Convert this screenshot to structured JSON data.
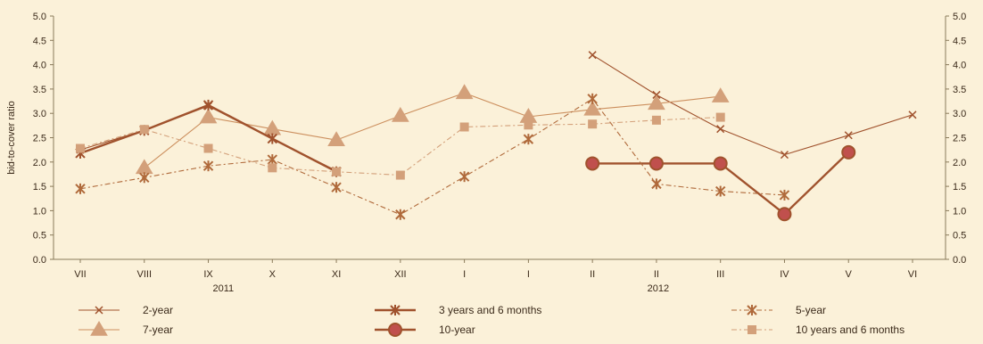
{
  "chart_data": {
    "type": "line",
    "ylabel": "bid-to-cover ratio",
    "ylim": [
      0,
      5
    ],
    "yticks": [
      "0.0",
      "0.5",
      "1.0",
      "1.5",
      "2.0",
      "2.5",
      "3.0",
      "3.5",
      "4.0",
      "4.5",
      "5.0"
    ],
    "categories": [
      "VII",
      "VIII",
      "IX",
      "X",
      "XI",
      "XII",
      "I",
      "I",
      "II",
      "II",
      "III",
      "IV",
      "V",
      "VI"
    ],
    "year_labels": [
      "2011",
      "2012"
    ],
    "grid": false,
    "legend_position": "bottom",
    "series": [
      {
        "name": "2-year",
        "color": "#a0522d",
        "style": "solid-thin",
        "marker": "x",
        "points": [
          [
            0,
            2.25
          ],
          [
            1,
            2.65
          ],
          [
            2,
            3.15
          ],
          [
            3,
            2.48
          ],
          [
            4,
            1.82
          ],
          null,
          null,
          null,
          [
            8,
            4.2
          ],
          [
            9,
            3.38
          ],
          [
            10,
            2.68
          ],
          [
            11,
            2.15
          ],
          [
            12,
            2.55
          ],
          [
            13,
            2.97
          ]
        ]
      },
      {
        "name": "7-year",
        "color": "#cc8f5e",
        "style": "solid-thin",
        "marker": "triangle",
        "points": [
          null,
          [
            1,
            1.88
          ],
          [
            2,
            2.92
          ],
          [
            3,
            2.68
          ],
          [
            4,
            2.45
          ],
          [
            5,
            2.95
          ],
          [
            6,
            3.42
          ],
          [
            7,
            2.93
          ],
          [
            8,
            3.08
          ],
          [
            9,
            3.2
          ],
          [
            10,
            3.35
          ],
          null,
          null,
          null
        ]
      },
      {
        "name": "3 years and 6 months",
        "color": "#a0522d",
        "style": "solid-thick",
        "marker": "star",
        "points": [
          [
            0,
            2.18
          ],
          [
            1,
            2.65
          ],
          [
            2,
            3.17
          ],
          [
            3,
            2.48
          ],
          [
            4,
            1.8
          ],
          null,
          null,
          null,
          null,
          null,
          null,
          null,
          null,
          null
        ]
      },
      {
        "name": "10-year",
        "color": "#a0522d",
        "style": "solid-thick",
        "marker": "circle",
        "points": [
          null,
          null,
          null,
          null,
          null,
          null,
          null,
          null,
          [
            8,
            1.97
          ],
          [
            9,
            1.97
          ],
          [
            10,
            1.97
          ],
          [
            11,
            0.93
          ],
          [
            12,
            2.2
          ],
          null
        ]
      },
      {
        "name": "5-year",
        "color": "#b06a3b",
        "style": "dashdot",
        "marker": "star",
        "points": [
          [
            0,
            1.45
          ],
          [
            1,
            1.68
          ],
          [
            2,
            1.92
          ],
          [
            3,
            2.05
          ],
          [
            4,
            1.48
          ],
          [
            5,
            0.92
          ],
          [
            6,
            1.7
          ],
          [
            7,
            2.47
          ],
          [
            8,
            3.3
          ],
          [
            9,
            1.55
          ],
          [
            10,
            1.4
          ],
          [
            11,
            1.32
          ],
          null,
          null
        ]
      },
      {
        "name": "10 years and 6 months",
        "color": "#d3a07a",
        "style": "dashdot",
        "marker": "square",
        "points": [
          [
            0,
            2.28
          ],
          [
            1,
            2.67
          ],
          [
            2,
            2.28
          ],
          [
            3,
            1.88
          ],
          [
            4,
            1.8
          ],
          [
            5,
            1.73
          ],
          [
            6,
            2.72
          ],
          [
            7,
            2.76
          ],
          [
            8,
            2.78
          ],
          [
            9,
            2.86
          ],
          [
            10,
            2.92
          ],
          null,
          null,
          null
        ]
      }
    ]
  }
}
